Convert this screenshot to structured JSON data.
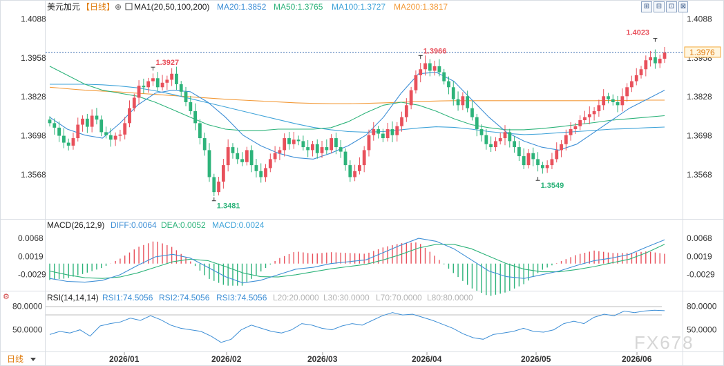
{
  "header": {
    "symbol": "美元加元",
    "period_tag": "【日线】",
    "settings_glyph": "⊕",
    "ma_label": "MA1(20,50,100,200)",
    "ma_values": [
      {
        "text": "MA20:1.3852",
        "color": "#3e8fd6"
      },
      {
        "text": "MA50:1.3765",
        "color": "#2db37a"
      },
      {
        "text": "MA100:1.3727",
        "color": "#3fa3d9"
      },
      {
        "text": "MA200:1.3817",
        "color": "#f39a38"
      }
    ]
  },
  "toolbar": [
    "⊞",
    "⊟",
    "⊡",
    "⊠"
  ],
  "price_axis": {
    "ticks": [
      "1.4088",
      "1.3958",
      "1.3828",
      "1.3698",
      "1.3568"
    ],
    "current": "1.3976",
    "ylim": [
      1.3432,
      1.4105
    ]
  },
  "annotations": {
    "high_jan": "1.3927",
    "low_feb": "1.3481",
    "high_mar": "1.3966",
    "low_may": "1.3549",
    "high_jun": "1.4023"
  },
  "macd": {
    "label": "MACD(26,12,9)",
    "diff": "DIFF:0.0064",
    "dea": "DEA:0.0052",
    "macd": "MACD:0.0024",
    "ticks": [
      "0.0068",
      "0.0019",
      "-0.0029"
    ],
    "colors": {
      "diff": "#3e8fd6",
      "dea": "#2db37a",
      "up": "#e8505b",
      "down": "#2db37a"
    }
  },
  "rsi": {
    "label": "RSI(14,14,14)",
    "rsi1": "RSI1:74.5056",
    "rsi2": "RSI2:74.5056",
    "rsi3": "RSI3:74.5056",
    "levels": [
      "L20:20.0000",
      "L30:30.0000",
      "L70:70.0000",
      "L80:80.0000"
    ],
    "ticks": [
      "80.0000",
      "50.0000"
    ]
  },
  "time_axis": {
    "period_button": "日线",
    "labels": [
      "2026/01",
      "2026/02",
      "2026/03",
      "2026/04",
      "2026/05",
      "2026/06"
    ]
  },
  "watermark": "FX678",
  "colors": {
    "up": "#e8505b",
    "down": "#2db37a",
    "ma20": "#3e8fd6",
    "ma50": "#2db37a",
    "ma100": "#3fa3d9",
    "ma200": "#f39a38"
  },
  "chart_data": {
    "type": "candlestick",
    "title": "美元加元【日线】",
    "ylim": [
      1.3432,
      1.4105
    ],
    "x_labels": [
      "2026/01",
      "2026/02",
      "2026/03",
      "2026/04",
      "2026/05",
      "2026/06"
    ],
    "closes": [
      1.374,
      1.3725,
      1.3698,
      1.3675,
      1.3665,
      1.369,
      1.3735,
      1.3755,
      1.3728,
      1.3765,
      1.3752,
      1.371,
      1.37,
      1.3685,
      1.3698,
      1.3702,
      1.374,
      1.379,
      1.3825,
      1.3865,
      1.386,
      1.388,
      1.389,
      1.386,
      1.3875,
      1.3885,
      1.3905,
      1.387,
      1.3845,
      1.381,
      1.378,
      1.374,
      1.369,
      1.365,
      1.356,
      1.351,
      1.3545,
      1.36,
      1.366,
      1.364,
      1.362,
      1.361,
      1.365,
      1.36,
      1.358,
      1.356,
      1.359,
      1.362,
      1.364,
      1.365,
      1.369,
      1.367,
      1.3685,
      1.368,
      1.366,
      1.365,
      1.367,
      1.364,
      1.366,
      1.365,
      1.369,
      1.366,
      1.3645,
      1.36,
      1.356,
      1.358,
      1.36,
      1.365,
      1.37,
      1.372,
      1.3705,
      1.369,
      1.372,
      1.37,
      1.373,
      1.376,
      1.38,
      1.385,
      1.39,
      1.392,
      1.394,
      1.3915,
      1.393,
      1.391,
      1.388,
      1.386,
      1.382,
      1.38,
      1.383,
      1.379,
      1.376,
      1.372,
      1.37,
      1.367,
      1.366,
      1.368,
      1.369,
      1.371,
      1.368,
      1.366,
      1.363,
      1.36,
      1.364,
      1.362,
      1.36,
      1.359,
      1.36,
      1.362,
      1.365,
      1.367,
      1.37,
      1.372,
      1.373,
      1.375,
      1.376,
      1.377,
      1.378,
      1.38,
      1.383,
      1.382,
      1.381,
      1.38,
      1.383,
      1.386,
      1.388,
      1.39,
      1.392,
      1.395,
      1.396,
      1.394,
      1.3955,
      1.3976
    ],
    "ma20": [
      1.376,
      1.372,
      1.37,
      1.369,
      1.374,
      1.38,
      1.384,
      1.385,
      1.3845,
      1.381,
      1.376,
      1.37,
      1.3665,
      1.364,
      1.3625,
      1.362,
      1.364,
      1.3665,
      1.37,
      1.376,
      1.384,
      1.3905,
      1.391,
      1.388,
      1.382,
      1.376,
      1.371,
      1.368,
      1.366,
      1.365,
      1.367,
      1.371,
      1.375,
      1.379,
      1.382,
      1.385
    ],
    "ma50": [
      1.393,
      1.39,
      1.387,
      1.385,
      1.384,
      1.383,
      1.381,
      1.3785,
      1.376,
      1.3735,
      1.372,
      1.3715,
      1.3715,
      1.372,
      1.372,
      1.372,
      1.3725,
      1.3745,
      1.3775,
      1.38,
      1.381,
      1.38,
      1.378,
      1.3755,
      1.3735,
      1.3725,
      1.3718,
      1.3718,
      1.3722,
      1.3728,
      1.3735,
      1.3742,
      1.375,
      1.3755,
      1.376,
      1.3765
    ],
    "ma100": [
      1.387,
      1.387,
      1.387,
      1.3868,
      1.3864,
      1.3858,
      1.3848,
      1.3836,
      1.3822,
      1.3808,
      1.3794,
      1.378,
      1.3766,
      1.3752,
      1.3738,
      1.3726,
      1.3718,
      1.3712,
      1.371,
      1.3712,
      1.3718,
      1.3724,
      1.3728,
      1.3726,
      1.372,
      1.3712,
      1.3706,
      1.3702,
      1.3704,
      1.3708,
      1.3712,
      1.3716,
      1.372,
      1.3722,
      1.3725,
      1.3727
    ],
    "ma200": [
      1.386,
      1.3855,
      1.385,
      1.3847,
      1.3844,
      1.384,
      1.3836,
      1.3832,
      1.3828,
      1.3824,
      1.382,
      1.3817,
      1.3814,
      1.3811,
      1.3808,
      1.3806,
      1.3805,
      1.3805,
      1.3806,
      1.3808,
      1.381,
      1.3812,
      1.3814,
      1.3815,
      1.3815,
      1.3815,
      1.3815,
      1.3815,
      1.3815,
      1.3815,
      1.3815,
      1.3815,
      1.3816,
      1.3816,
      1.3817,
      1.3817
    ],
    "macd_ylim": [
      -0.006,
      0.0085
    ],
    "macd_diff": [
      -0.004,
      -0.0048,
      -0.005,
      -0.0045,
      -0.003,
      -0.0005,
      0.0018,
      0.0025,
      0.0015,
      -0.001,
      -0.0035,
      -0.0052,
      -0.0045,
      -0.003,
      -0.0015,
      -0.001,
      0.0,
      0.0005,
      0.001,
      0.003,
      0.005,
      0.0068,
      0.006,
      0.004,
      0.001,
      -0.002,
      -0.0035,
      -0.004,
      -0.003,
      -0.002,
      -0.0005,
      0.0008,
      0.0015,
      0.0025,
      0.0045,
      0.0064
    ],
    "macd_dea": [
      -0.002,
      -0.003,
      -0.0038,
      -0.004,
      -0.0036,
      -0.0025,
      -0.001,
      0.0005,
      0.0012,
      0.0008,
      -0.0008,
      -0.0025,
      -0.0035,
      -0.0036,
      -0.003,
      -0.0022,
      -0.0014,
      -0.0008,
      -0.0002,
      0.001,
      0.0025,
      0.0042,
      0.0052,
      0.0052,
      0.004,
      0.002,
      0.0,
      -0.0015,
      -0.0022,
      -0.0022,
      -0.0016,
      -0.0008,
      0.0002,
      0.0012,
      0.003,
      0.0052
    ],
    "rsi_ylim": [
      25,
      92
    ],
    "rsi": [
      44,
      48,
      46,
      50,
      42,
      55,
      58,
      60,
      65,
      62,
      68,
      63,
      56,
      52,
      50,
      48,
      42,
      34,
      38,
      50,
      56,
      52,
      48,
      46,
      50,
      58,
      56,
      52,
      50,
      55,
      58,
      56,
      62,
      68,
      72,
      69,
      70,
      66,
      62,
      57,
      52,
      45,
      40,
      38,
      44,
      46,
      48,
      52,
      48,
      47,
      50,
      58,
      61,
      58,
      66,
      70,
      68,
      74,
      72,
      74,
      75,
      74.5
    ]
  }
}
